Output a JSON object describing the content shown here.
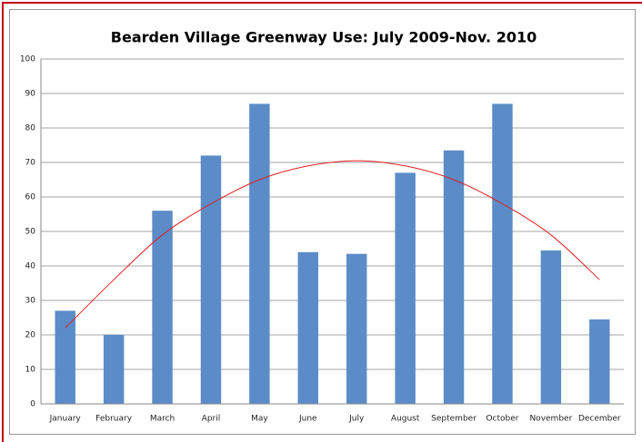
{
  "chart_data": {
    "type": "bar",
    "title": "Bearden Village Greenway Use: July 2009-Nov. 2010",
    "categories": [
      "January",
      "February",
      "March",
      "April",
      "May",
      "June",
      "July",
      "August",
      "September",
      "October",
      "November",
      "December"
    ],
    "series": [
      {
        "type": "bar",
        "color": "#5b8cc8",
        "values": [
          27,
          20,
          56,
          72,
          87,
          44,
          43.5,
          67,
          73.5,
          87,
          44.5,
          24.5
        ]
      },
      {
        "type": "line",
        "color": "#e02020",
        "values": [
          22,
          36,
          49,
          58,
          65,
          69,
          70.5,
          69,
          65,
          58,
          49,
          36
        ]
      }
    ],
    "ylim": [
      0,
      100
    ],
    "yticks": [
      0,
      10,
      20,
      30,
      40,
      50,
      60,
      70,
      80,
      90,
      100
    ],
    "grid": true
  }
}
